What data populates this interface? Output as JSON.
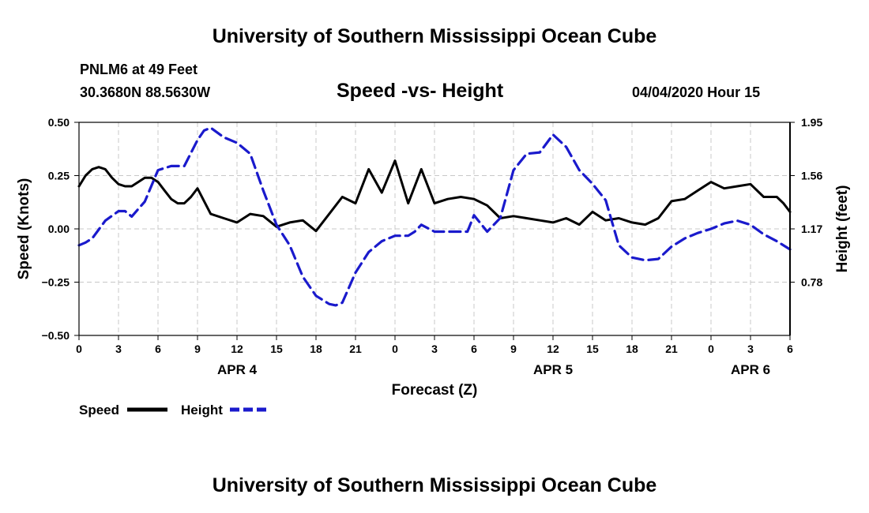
{
  "page": {
    "top_title": "University of Southern Mississippi Ocean Cube",
    "bottom_title": "University of Southern Mississippi Ocean Cube",
    "station": "PNLM6 at 49 Feet",
    "coords": "30.3680N 88.5630W",
    "datetime": "04/04/2020 Hour 15"
  },
  "legend": {
    "speed_label": "Speed",
    "height_label": "Height"
  },
  "colors": {
    "speed": "#000000",
    "height": "#1a1acc",
    "grid": "#c8c8c8"
  },
  "chart_data": {
    "type": "line",
    "title": "Speed -vs- Height",
    "xlabel": "Forecast (Z)",
    "ylabel": "Speed (Knots)",
    "y2label": "Height (feet)",
    "xlim": [
      0,
      54
    ],
    "ylim": [
      -0.5,
      0.5
    ],
    "y2lim": [
      0.39,
      1.95
    ],
    "x_ticks": [
      0,
      3,
      6,
      9,
      12,
      15,
      18,
      21,
      24,
      27,
      30,
      33,
      36,
      39,
      42,
      45,
      48,
      51,
      54
    ],
    "x_tick_labels": [
      "0",
      "3",
      "6",
      "9",
      "12",
      "15",
      "18",
      "21",
      "0",
      "3",
      "6",
      "9",
      "12",
      "15",
      "18",
      "21",
      "0",
      "3",
      "6"
    ],
    "y_ticks": [
      0.5,
      0.25,
      0.0,
      -0.25,
      -0.5
    ],
    "y_tick_labels": [
      "0.50",
      "0.25",
      "0.00",
      "−0.25",
      "−0.50"
    ],
    "y2_ticks": [
      1.95,
      1.56,
      1.17,
      0.78
    ],
    "y2_tick_labels": [
      "1.95",
      "1.56",
      "1.17",
      "0.78"
    ],
    "date_labels": [
      {
        "x": 12,
        "label": "APR 4"
      },
      {
        "x": 36,
        "label": "APR 5"
      },
      {
        "x": 51,
        "label": "APR 6"
      }
    ],
    "grid": true,
    "legend_position": "bottom-left",
    "series": [
      {
        "name": "Speed",
        "axis": "left",
        "style": "solid",
        "x": [
          0,
          0.5,
          1,
          1.5,
          2,
          2.5,
          3,
          3.5,
          4,
          4.5,
          5,
          5.5,
          6,
          6.5,
          7,
          7.5,
          8,
          8.5,
          9,
          10,
          11,
          12,
          13,
          14,
          15,
          16,
          17,
          18,
          19,
          20,
          21,
          22,
          23,
          24,
          25,
          26,
          27,
          28,
          29,
          30,
          31,
          32,
          33,
          34,
          35,
          36,
          37,
          38,
          39,
          40,
          41,
          42,
          43,
          44,
          45,
          46,
          47,
          48,
          49,
          50,
          51,
          52,
          53,
          53.5,
          54
        ],
        "values": [
          0.2,
          0.25,
          0.28,
          0.29,
          0.28,
          0.24,
          0.21,
          0.2,
          0.2,
          0.22,
          0.24,
          0.24,
          0.22,
          0.18,
          0.14,
          0.12,
          0.12,
          0.15,
          0.19,
          0.07,
          0.05,
          0.03,
          0.07,
          0.06,
          0.01,
          0.03,
          0.04,
          -0.01,
          0.07,
          0.15,
          0.12,
          0.28,
          0.17,
          0.32,
          0.12,
          0.28,
          0.12,
          0.14,
          0.15,
          0.14,
          0.11,
          0.05,
          0.06,
          0.05,
          0.04,
          0.03,
          0.05,
          0.02,
          0.08,
          0.04,
          0.05,
          0.03,
          0.02,
          0.05,
          0.13,
          0.14,
          0.18,
          0.22,
          0.19,
          0.2,
          0.21,
          0.15,
          0.15,
          0.12,
          0.08
        ]
      },
      {
        "name": "Height",
        "axis": "right",
        "style": "dashed",
        "x": [
          0,
          0.5,
          1,
          2,
          3,
          3.5,
          4,
          5,
          6,
          7,
          8,
          9,
          9.5,
          10,
          11,
          12,
          13,
          14,
          15,
          16,
          17,
          18,
          19,
          19.5,
          20,
          21,
          22,
          23,
          24,
          25,
          25.5,
          26,
          27,
          28,
          29,
          29.5,
          30,
          31,
          32,
          33,
          34,
          35,
          36,
          37,
          38,
          39,
          40,
          41,
          42,
          43,
          44,
          45,
          46,
          47,
          48,
          49,
          50,
          51,
          52,
          53,
          54
        ],
        "values": [
          1.05,
          1.07,
          1.1,
          1.23,
          1.3,
          1.3,
          1.26,
          1.37,
          1.6,
          1.63,
          1.63,
          1.82,
          1.89,
          1.91,
          1.84,
          1.8,
          1.72,
          1.45,
          1.2,
          1.05,
          0.82,
          0.68,
          0.62,
          0.61,
          0.63,
          0.85,
          1.0,
          1.08,
          1.12,
          1.12,
          1.15,
          1.2,
          1.15,
          1.15,
          1.15,
          1.15,
          1.27,
          1.15,
          1.25,
          1.6,
          1.72,
          1.73,
          1.86,
          1.77,
          1.6,
          1.5,
          1.38,
          1.05,
          0.96,
          0.94,
          0.95,
          1.04,
          1.1,
          1.14,
          1.17,
          1.21,
          1.23,
          1.2,
          1.13,
          1.08,
          1.02
        ]
      }
    ]
  }
}
